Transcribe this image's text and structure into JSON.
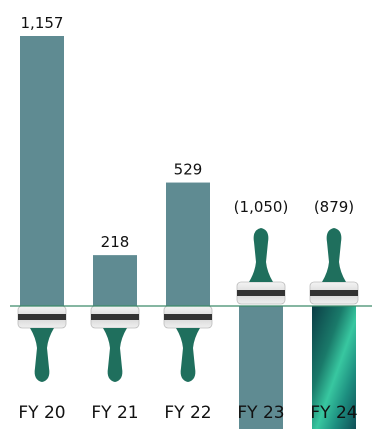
{
  "chart_data": {
    "type": "bar",
    "title": "",
    "xlabel": "",
    "ylabel": "",
    "categories": [
      "FY 20",
      "FY 21",
      "FY 22",
      "FY 23",
      "FY 24"
    ],
    "values": [
      1157,
      218,
      529,
      -1050,
      -879
    ],
    "value_labels": [
      "1,157",
      "218",
      "529",
      "(1,050)",
      "(879)"
    ],
    "ylim": [
      -1200,
      1200
    ],
    "grid": false,
    "legend": "none"
  },
  "colors": {
    "bar": "#5f8b92",
    "baseline": "#3c8a69",
    "brush_handle": "#1f6f5d",
    "brush_ferrule": "#e6e6e6",
    "brush_band": "#333333",
    "text": "#111111"
  },
  "icons": [
    "paintbrush-icon"
  ]
}
